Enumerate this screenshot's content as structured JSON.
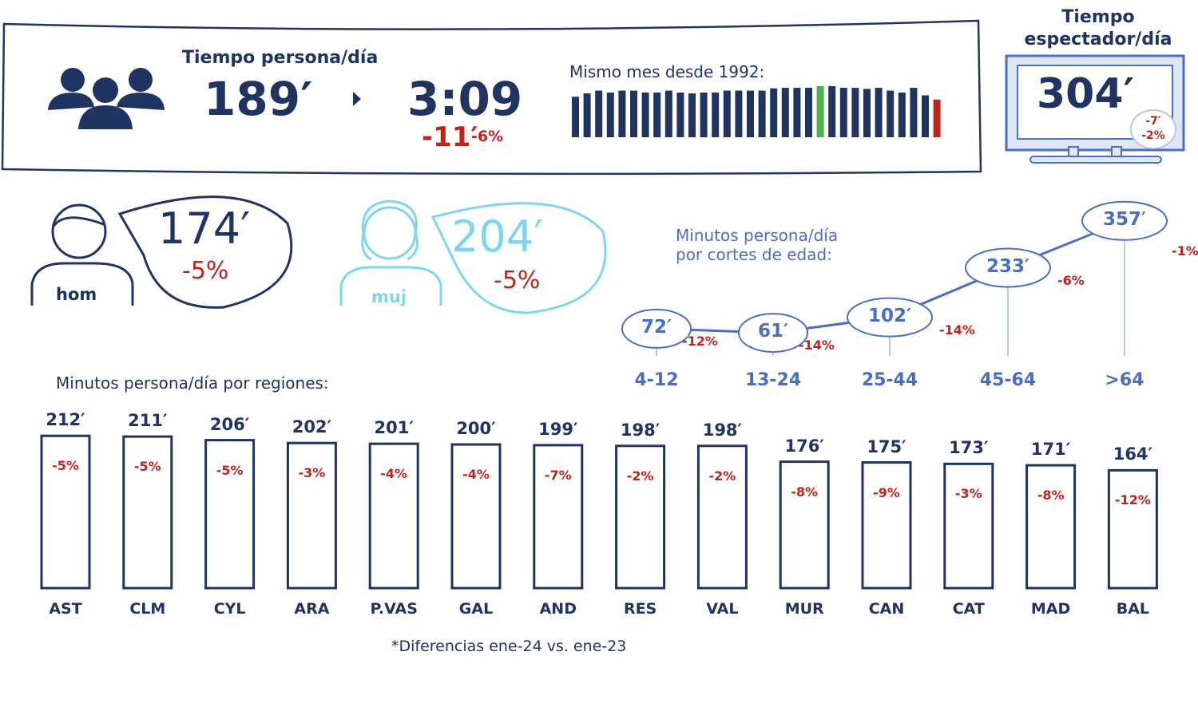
{
  "header": {
    "title": "Tiempo persona/día",
    "minutes": "189′",
    "hours": "3:09",
    "diff_min": "-11′",
    "diff_pct": "-6%",
    "history_label": "Mismo mes desde 1992:"
  },
  "history_bars": {
    "values": [
      145,
      157,
      167,
      160,
      167,
      167,
      160,
      160,
      167,
      160,
      157,
      160,
      160,
      167,
      167,
      167,
      167,
      175,
      177,
      177,
      177,
      183,
      183,
      177,
      177,
      173,
      177,
      167,
      160,
      177,
      150,
      135
    ],
    "highlight_max_index": 21,
    "highlight_last_index": 31,
    "colors": {
      "normal": "#1f3461",
      "max": "#4caf50",
      "last": "#c0221c"
    }
  },
  "viewer": {
    "title_line1": "Tiempo",
    "title_line2": "espectador/día",
    "value": "304′",
    "diff_min": "-7′",
    "diff_pct": "-2%"
  },
  "gender": {
    "men": {
      "label": "hom",
      "value": "174′",
      "pct": "-5%"
    },
    "women": {
      "label": "muj",
      "value": "204′",
      "pct": "-5%"
    }
  },
  "age": {
    "title_line1": "Minutos persona/día",
    "title_line2": "por cortes de edad:",
    "groups": [
      {
        "label": "4-12",
        "value": 72,
        "text": "72′",
        "pct": "-12%"
      },
      {
        "label": "13-24",
        "value": 61,
        "text": "61′",
        "pct": "-14%"
      },
      {
        "label": "25-44",
        "value": 102,
        "text": "102′",
        "pct": "-14%"
      },
      {
        "label": "45-64",
        "value": 233,
        "text": "233′",
        "pct": "-6%"
      },
      {
        "label": ">64",
        "value": 357,
        "text": "357′",
        "pct": "-1%"
      }
    ]
  },
  "regions": {
    "title": "Minutos persona/día por regiones:",
    "items": [
      {
        "label": "AST",
        "value": 212,
        "text": "212′",
        "pct": "-5%"
      },
      {
        "label": "CLM",
        "value": 211,
        "text": "211′",
        "pct": "-5%"
      },
      {
        "label": "CYL",
        "value": 206,
        "text": "206′",
        "pct": "-5%"
      },
      {
        "label": "ARA",
        "value": 202,
        "text": "202′",
        "pct": "-3%"
      },
      {
        "label": "P.VAS",
        "value": 201,
        "text": "201′",
        "pct": "-4%"
      },
      {
        "label": "GAL",
        "value": 200,
        "text": "200′",
        "pct": "-4%"
      },
      {
        "label": "AND",
        "value": 199,
        "text": "199′",
        "pct": "-7%"
      },
      {
        "label": "RES",
        "value": 198,
        "text": "198′",
        "pct": "-2%"
      },
      {
        "label": "VAL",
        "value": 198,
        "text": "198′",
        "pct": "-2%"
      },
      {
        "label": "MUR",
        "value": 176,
        "text": "176′",
        "pct": "-8%"
      },
      {
        "label": "CAN",
        "value": 175,
        "text": "175′",
        "pct": "-9%"
      },
      {
        "label": "CAT",
        "value": 173,
        "text": "173′",
        "pct": "-3%"
      },
      {
        "label": "MAD",
        "value": 171,
        "text": "171′",
        "pct": "-8%"
      },
      {
        "label": "BAL",
        "value": 164,
        "text": "164′",
        "pct": "-12%"
      }
    ]
  },
  "footnote": "*Diferencias ene-24 vs. ene-23"
}
